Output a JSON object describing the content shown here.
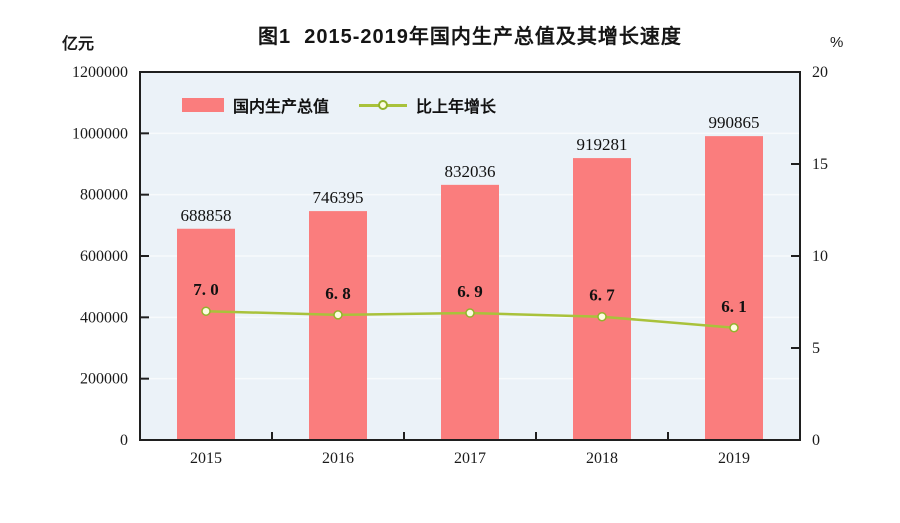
{
  "title": "图1  2015-2019年国内生产总值及其增长速度",
  "left_axis_unit": "亿元",
  "right_axis_unit": "%",
  "legend": {
    "bar_label": "国内生产总值",
    "line_label": "比上年增长"
  },
  "colors": {
    "bar": "#fa7d7d",
    "line": "#a9c23b",
    "marker_fill": "#fdfde0",
    "marker_stroke": "#93b42c",
    "plot_bg": "#ebf2f8",
    "grid": "#f7fafc",
    "frame": "#1f1f1f",
    "text": "#1a1a1a"
  },
  "chart_data": {
    "type": "bar",
    "subtype": "bar+line combo, dual axis",
    "title": "图1  2015-2019年国内生产总值及其增长速度",
    "categories": [
      "2015",
      "2016",
      "2017",
      "2018",
      "2019"
    ],
    "series": [
      {
        "name": "国内生产总值",
        "type": "bar",
        "axis": "left",
        "values": [
          688858,
          746395,
          832036,
          919281,
          990865
        ],
        "labels": [
          "688858",
          "746395",
          "832036",
          "919281",
          "990865"
        ]
      },
      {
        "name": "比上年增长",
        "type": "line",
        "axis": "right",
        "values": [
          7.0,
          6.8,
          6.9,
          6.7,
          6.1
        ],
        "labels": [
          "7. 0",
          "6. 8",
          "6. 9",
          "6. 7",
          "6. 1"
        ]
      }
    ],
    "left_axis": {
      "unit": "亿元",
      "min": 0,
      "max": 1200000,
      "tick_step": 200000,
      "ticks": [
        "1200000",
        "1000000",
        "800000",
        "600000",
        "400000",
        "200000",
        "0"
      ]
    },
    "right_axis": {
      "unit": "%",
      "min": 0,
      "max": 20,
      "tick_step": 5,
      "ticks": [
        "20",
        "15",
        "10",
        "5",
        "0"
      ]
    },
    "grid": true,
    "legend_position": "top-inside"
  }
}
